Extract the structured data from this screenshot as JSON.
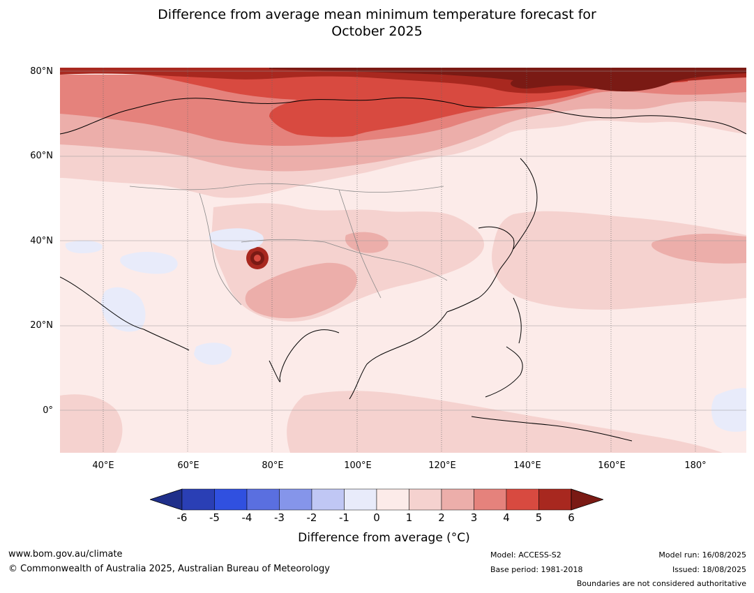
{
  "title_line1": "Difference from average mean minimum temperature forecast for",
  "title_line2": "October 2025",
  "latitude_labels": [
    "80°N",
    "60°N",
    "40°N",
    "20°N",
    "0°"
  ],
  "longitude_labels": [
    "40°E",
    "60°E",
    "80°E",
    "100°E",
    "120°E",
    "140°E",
    "160°E",
    "180°"
  ],
  "colorbar": {
    "ticks": [
      "-6",
      "-5",
      "-4",
      "-3",
      "-2",
      "-1",
      "0",
      "1",
      "2",
      "3",
      "4",
      "5",
      "6"
    ],
    "colors": [
      "#1f2f8a",
      "#2a3fb5",
      "#3050e0",
      "#5a6fe0",
      "#8595ea",
      "#c0c7f4",
      "#e8ebfa",
      "#fcebe9",
      "#f5d2cf",
      "#ecaeaa",
      "#e5827c",
      "#d84a40",
      "#a8281f",
      "#7a1a14"
    ],
    "label": "Difference from average (°C)"
  },
  "footer": {
    "website": "www.bom.gov.au/climate",
    "copyright": "© Commonwealth of Australia 2025, Australian Bureau of Meteorology",
    "model": "Model: ACCESS-S2",
    "base_period": "Base period: 1981-2018",
    "model_run": "Model run: 16/08/2025",
    "issued": "Issued: 18/08/2025",
    "disclaimer": "Boundaries are not considered authoritative"
  }
}
